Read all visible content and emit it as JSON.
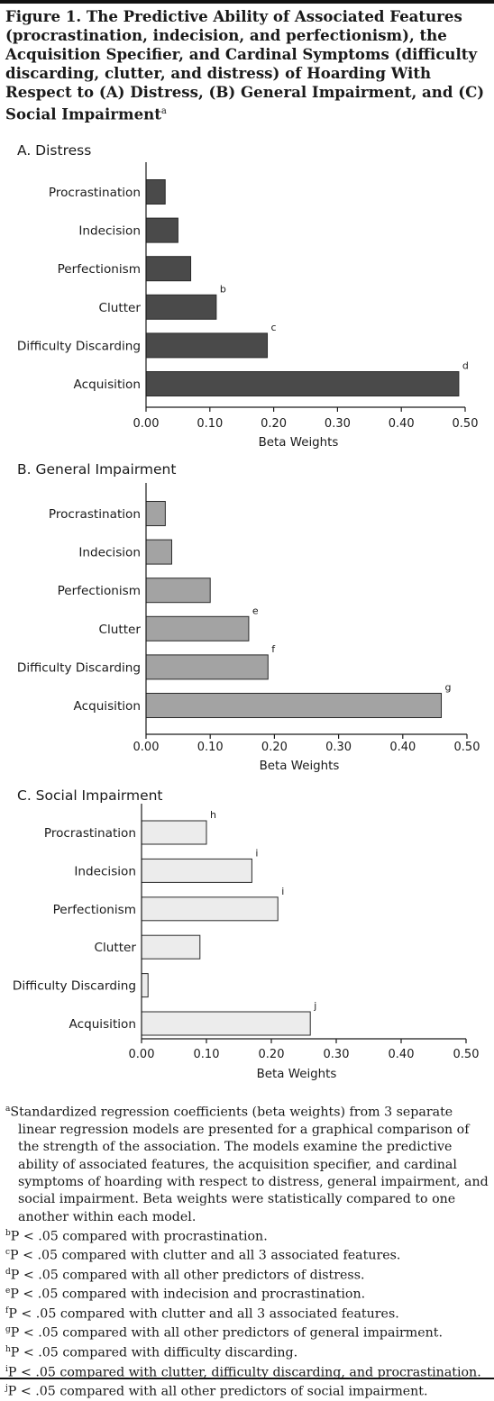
{
  "figure": {
    "title": "Figure 1. The Predictive Ability of Associated Features (procrastination, indecision, and perfectionism), the Acquisition Specifier, and Cardinal Symptoms (difficulty discarding, clutter, and distress) of Hoarding With Respect to (A) Distress, (B) General Impairment, and (C) Social Impairment",
    "title_marker": "a"
  },
  "chart_data": [
    {
      "type": "bar",
      "orientation": "horizontal",
      "title": "A. Distress",
      "xlabel": "Beta Weights",
      "categories": [
        "Procrastination",
        "Indecision",
        "Perfectionism",
        "Clutter",
        "Difficulty Discarding",
        "Acquisition"
      ],
      "values": [
        0.03,
        0.05,
        0.07,
        0.11,
        0.19,
        0.49
      ],
      "annotations": [
        "",
        "",
        "",
        "b",
        "c",
        "d"
      ],
      "xlim": [
        0,
        0.5
      ],
      "ticks": [
        0,
        0.1,
        0.2,
        0.3,
        0.4,
        0.5
      ],
      "tick_labels": [
        "0.00",
        "0.10",
        "0.20",
        "0.30",
        "0.40",
        "0.50"
      ],
      "bar_color": "#4a4a4a"
    },
    {
      "type": "bar",
      "orientation": "horizontal",
      "title": "B. General Impairment",
      "xlabel": "Beta Weights",
      "categories": [
        "Procrastination",
        "Indecision",
        "Perfectionism",
        "Clutter",
        "Difficulty Discarding",
        "Acquisition"
      ],
      "values": [
        0.03,
        0.04,
        0.1,
        0.16,
        0.19,
        0.46
      ],
      "annotations": [
        "",
        "",
        "",
        "e",
        "f",
        "g"
      ],
      "xlim": [
        0,
        0.5
      ],
      "ticks": [
        0,
        0.1,
        0.2,
        0.3,
        0.4,
        0.5
      ],
      "tick_labels": [
        "0.00",
        "0.10",
        "0.20",
        "0.30",
        "0.40",
        "0.50"
      ],
      "bar_color": "#a3a3a3"
    },
    {
      "type": "bar",
      "orientation": "horizontal",
      "title": "C. Social Impairment",
      "xlabel": "Beta Weights",
      "categories": [
        "Procrastination",
        "Indecision",
        "Perfectionism",
        "Clutter",
        "Difficulty Discarding",
        "Acquisition"
      ],
      "values": [
        0.1,
        0.17,
        0.21,
        0.09,
        0.01,
        0.26
      ],
      "annotations": [
        "h",
        "i",
        "i",
        "",
        "",
        "j"
      ],
      "xlim": [
        0,
        0.5
      ],
      "ticks": [
        0,
        0.1,
        0.2,
        0.3,
        0.4,
        0.5
      ],
      "tick_labels": [
        "0.00",
        "0.10",
        "0.20",
        "0.30",
        "0.40",
        "0.50"
      ],
      "bar_color": "#ececec"
    }
  ],
  "footnotes": [
    {
      "marker": "a",
      "text": "Standardized regression coefficients (beta weights) from 3 separate linear regression models are presented for a graphical comparison of the strength of the association. The models examine the predictive ability of associated features, the acquisition specifier, and cardinal symptoms of hoarding with respect to distress, general impairment, and social impairment. Beta weights were statistically compared to one another within each model."
    },
    {
      "marker": "b",
      "text": "P < .05 compared with procrastination."
    },
    {
      "marker": "c",
      "text": "P < .05 compared with clutter and all 3 associated features."
    },
    {
      "marker": "d",
      "text": "P < .05 compared with all other predictors of distress."
    },
    {
      "marker": "e",
      "text": "P < .05 compared with indecision and procrastination."
    },
    {
      "marker": "f",
      "text": "P < .05 compared with clutter and all 3 associated features."
    },
    {
      "marker": "g",
      "text": "P < .05 compared with all other predictors of general impairment."
    },
    {
      "marker": "h",
      "text": "P < .05 compared with difficulty discarding."
    },
    {
      "marker": "i",
      "text": "P < .05 compared with clutter, difficulty discarding, and procrastination."
    },
    {
      "marker": "j",
      "text": "P < .05 compared with all other predictors of social impairment."
    }
  ]
}
